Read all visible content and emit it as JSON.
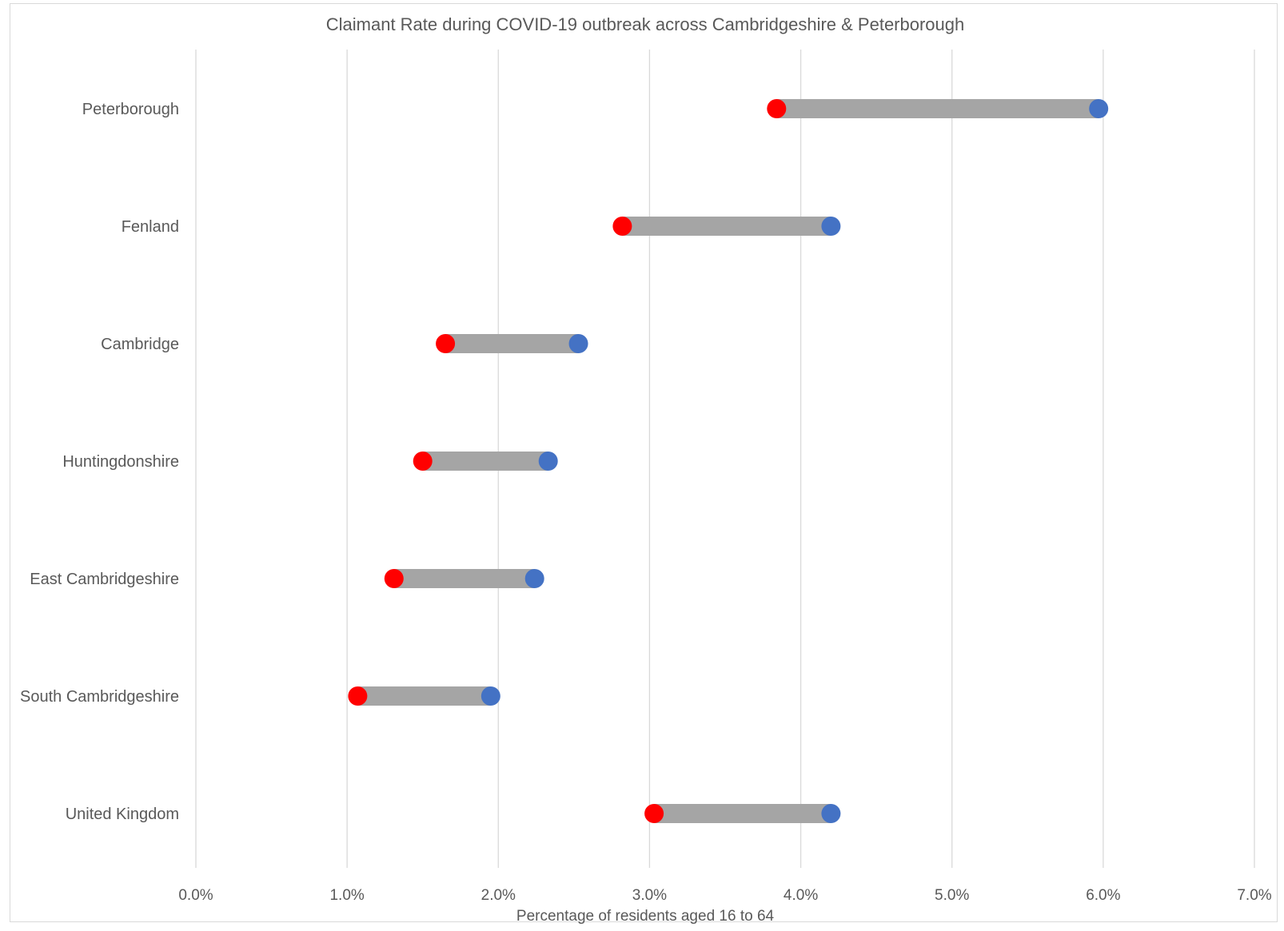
{
  "chart_data": {
    "type": "dumbbell",
    "title": "Claimant Rate during COVID-19 outbreak across Cambridgeshire & Peterborough",
    "xlabel": "Percentage of residents aged 16 to  64",
    "ylabel": "",
    "xlim": [
      0,
      7
    ],
    "x_ticks": [
      "0.0%",
      "1.0%",
      "2.0%",
      "3.0%",
      "4.0%",
      "5.0%",
      "6.0%",
      "7.0%"
    ],
    "grid": "vertical",
    "legend": "none",
    "categories": [
      "Peterborough",
      "Fenland",
      "Cambridge",
      "Huntingdonshire",
      "East Cambridgeshire",
      "South Cambridgeshire",
      "United Kingdom"
    ],
    "series": [
      {
        "color": "#ff0000",
        "values": [
          3.84,
          2.82,
          1.65,
          1.5,
          1.31,
          1.07,
          3.03
        ]
      },
      {
        "color": "#4472c4",
        "values": [
          5.97,
          4.2,
          2.53,
          2.33,
          2.24,
          1.95,
          4.2
        ]
      }
    ],
    "connector_color": "#a5a5a5"
  }
}
